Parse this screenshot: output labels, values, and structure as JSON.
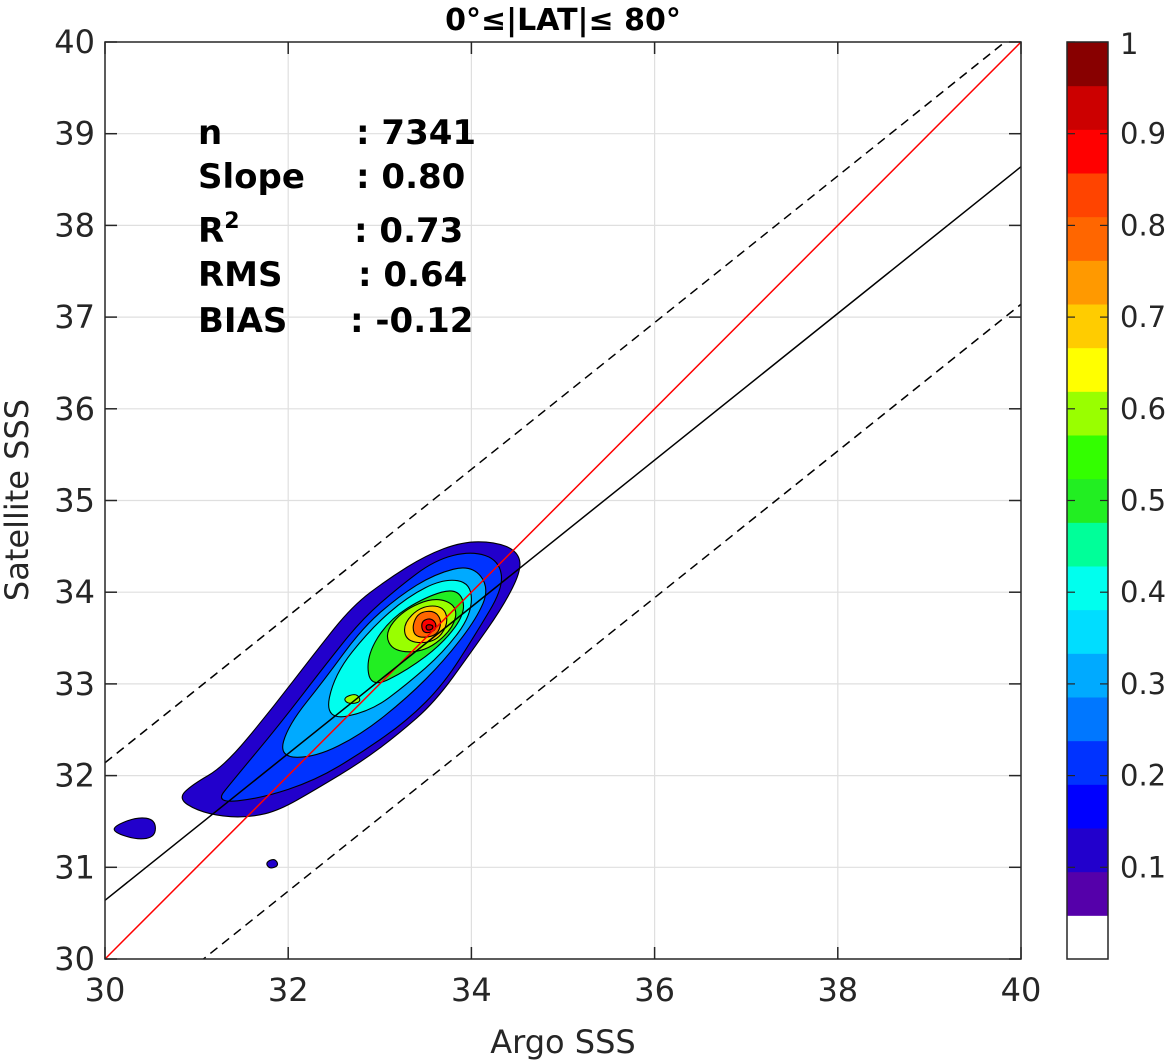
{
  "chart_data": {
    "type": "contour",
    "title": "0°≤|LAT|≤ 80°",
    "xlabel": "Argo SSS",
    "ylabel": "Satellite SSS",
    "xlim": [
      30,
      40
    ],
    "ylim": [
      30,
      40
    ],
    "x_ticks": [
      "30",
      "32",
      "34",
      "36",
      "38",
      "40"
    ],
    "y_ticks": [
      "30",
      "31",
      "32",
      "33",
      "34",
      "35",
      "36",
      "37",
      "38",
      "39",
      "40"
    ],
    "grid": true,
    "stats": [
      {
        "label": "n",
        "value": ": 7341"
      },
      {
        "label": "Slope",
        "value": ": 0.80"
      },
      {
        "label": "R",
        "sup": "2",
        "value": ": 0.73"
      },
      {
        "label": "RMS",
        "value": ": 0.64"
      },
      {
        "label": "BIAS",
        "value": ": -0.12"
      }
    ],
    "reference_lines": [
      {
        "kind": "one-to-one",
        "color": "#ff0000",
        "style": "solid",
        "points": [
          [
            30,
            30
          ],
          [
            40,
            40
          ]
        ]
      },
      {
        "kind": "regression",
        "color": "#000000",
        "style": "solid",
        "points": [
          [
            30,
            30.64
          ],
          [
            40,
            38.64
          ]
        ]
      },
      {
        "kind": "upper-bound",
        "color": "#000000",
        "style": "dashed",
        "points": [
          [
            30,
            32.14
          ],
          [
            40,
            40.14
          ]
        ]
      },
      {
        "kind": "lower-bound",
        "color": "#000000",
        "style": "dashed",
        "points": [
          [
            30,
            29.14
          ],
          [
            40,
            37.14
          ]
        ]
      }
    ],
    "contour_levels": [
      0.05,
      0.1,
      0.2,
      0.3,
      0.4,
      0.5,
      0.6,
      0.7,
      0.8,
      0.9
    ],
    "density_peak": {
      "x": 33.55,
      "y": 33.6
    },
    "colorbar": {
      "ticks": [
        "0.1",
        "0.2",
        "0.3",
        "0.4",
        "0.5",
        "0.6",
        "0.7",
        "0.8",
        "0.9",
        "1"
      ],
      "tick_values": [
        0.1,
        0.2,
        0.3,
        0.4,
        0.5,
        0.6,
        0.7,
        0.8,
        0.9,
        1.0
      ],
      "range": [
        0,
        1
      ],
      "colors": [
        "#ffffff",
        "#5500aa",
        "#2200cc",
        "#0000ff",
        "#0033ff",
        "#0077ff",
        "#00aaff",
        "#00ddff",
        "#00ffee",
        "#00ff99",
        "#22ee22",
        "#33ff00",
        "#99ff00",
        "#ffff00",
        "#ffcc00",
        "#ff9900",
        "#ff6600",
        "#ff4400",
        "#ff0000",
        "#cc0000",
        "#880000"
      ]
    }
  }
}
